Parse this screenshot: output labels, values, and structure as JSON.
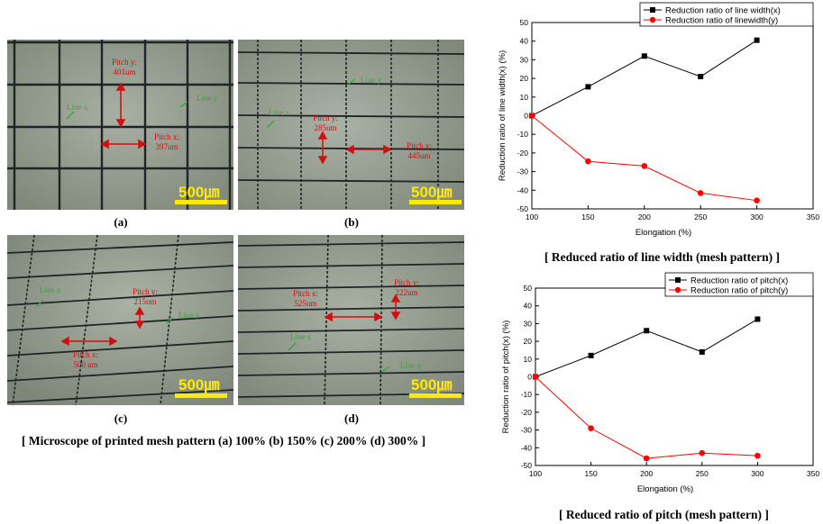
{
  "micrographs": [
    {
      "label": "(a)",
      "scale": "500㎛",
      "annotations": {
        "pitch_y": [
          "Pitch y:",
          "401um"
        ],
        "pitch_x": [
          "Pitch x:",
          "397um"
        ],
        "line_x": "Line x",
        "line_y": "Line y"
      }
    },
    {
      "label": "(b)",
      "scale": "500㎛",
      "annotations": {
        "pitch_y": [
          "Pitch y:",
          "285um"
        ],
        "pitch_x": [
          "Pitch x:",
          "445um"
        ],
        "line_x": "Line x",
        "line_y": "Line y"
      }
    },
    {
      "label": "(c)",
      "scale": "500㎛",
      "annotations": {
        "pitch_y": [
          "Pitch y:",
          "215um"
        ],
        "pitch_x": [
          "Pitch x:",
          "500 um"
        ],
        "line_x": "Line x",
        "line_y": "Line y"
      }
    },
    {
      "label": "(d)",
      "scale": "500㎛",
      "annotations": {
        "pitch_y": [
          "Pitch y:",
          "222um"
        ],
        "pitch_x": [
          "Pitch x:",
          "525um"
        ],
        "line_x": "Line x",
        "line_y": "Line y"
      }
    }
  ],
  "captions": {
    "micro": "[ Microscope of printed mesh pattern (a) 100% (b) 150% (c) 200% (d) 300% ]",
    "chart1": "[ Reduced ratio of line width (mesh pattern) ]",
    "chart2": "[ Reduced ratio of pitch (mesh pattern) ]"
  },
  "colors": {
    "series_x": "#000000",
    "series_y": "#ff0000",
    "annotation_red": "#d01010",
    "annotation_green": "#38a838",
    "scale_bar": "#ffea00"
  },
  "chart_data": [
    {
      "type": "line",
      "x": [
        100,
        150,
        200,
        250,
        300
      ],
      "series": [
        {
          "name": "Reduction ratio of line width(x)",
          "values": [
            0,
            15.5,
            32,
            21,
            40.5
          ],
          "marker": "square",
          "color": "#000000"
        },
        {
          "name": "Reduction ratio of linewidth(y)",
          "values": [
            0,
            -24.5,
            -27,
            -41.5,
            -45.5
          ],
          "marker": "circle",
          "color": "#ff0000"
        }
      ],
      "xlabel": "Elongation (%)",
      "ylabel": "Reduction ratio of line width(x) (%)",
      "xlim": [
        100,
        350
      ],
      "ylim": [
        -50,
        50
      ],
      "xticks": [
        100,
        150,
        200,
        250,
        300,
        350
      ],
      "yticks": [
        -50,
        -40,
        -30,
        -20,
        -10,
        0,
        10,
        20,
        30,
        40,
        50
      ],
      "legend": "top-right",
      "grid": false
    },
    {
      "type": "line",
      "x": [
        100,
        150,
        200,
        250,
        300
      ],
      "series": [
        {
          "name": "Reduction ratio of pitch(x)",
          "values": [
            0,
            12,
            26,
            14,
            32.5
          ],
          "marker": "square",
          "color": "#000000"
        },
        {
          "name": "Reduction ratio of pitch(y)",
          "values": [
            0,
            -29,
            -46,
            -43,
            -44.5
          ],
          "marker": "circle",
          "color": "#ff0000"
        }
      ],
      "xlabel": "Elongation (%)",
      "ylabel": "Reduction ratio of pitch(x) (%)",
      "xlim": [
        100,
        350
      ],
      "ylim": [
        -50,
        50
      ],
      "xticks": [
        100,
        150,
        200,
        250,
        300,
        350
      ],
      "yticks": [
        -50,
        -40,
        -30,
        -20,
        -10,
        0,
        10,
        20,
        30,
        40,
        50
      ],
      "legend": "top-right",
      "grid": false
    }
  ]
}
